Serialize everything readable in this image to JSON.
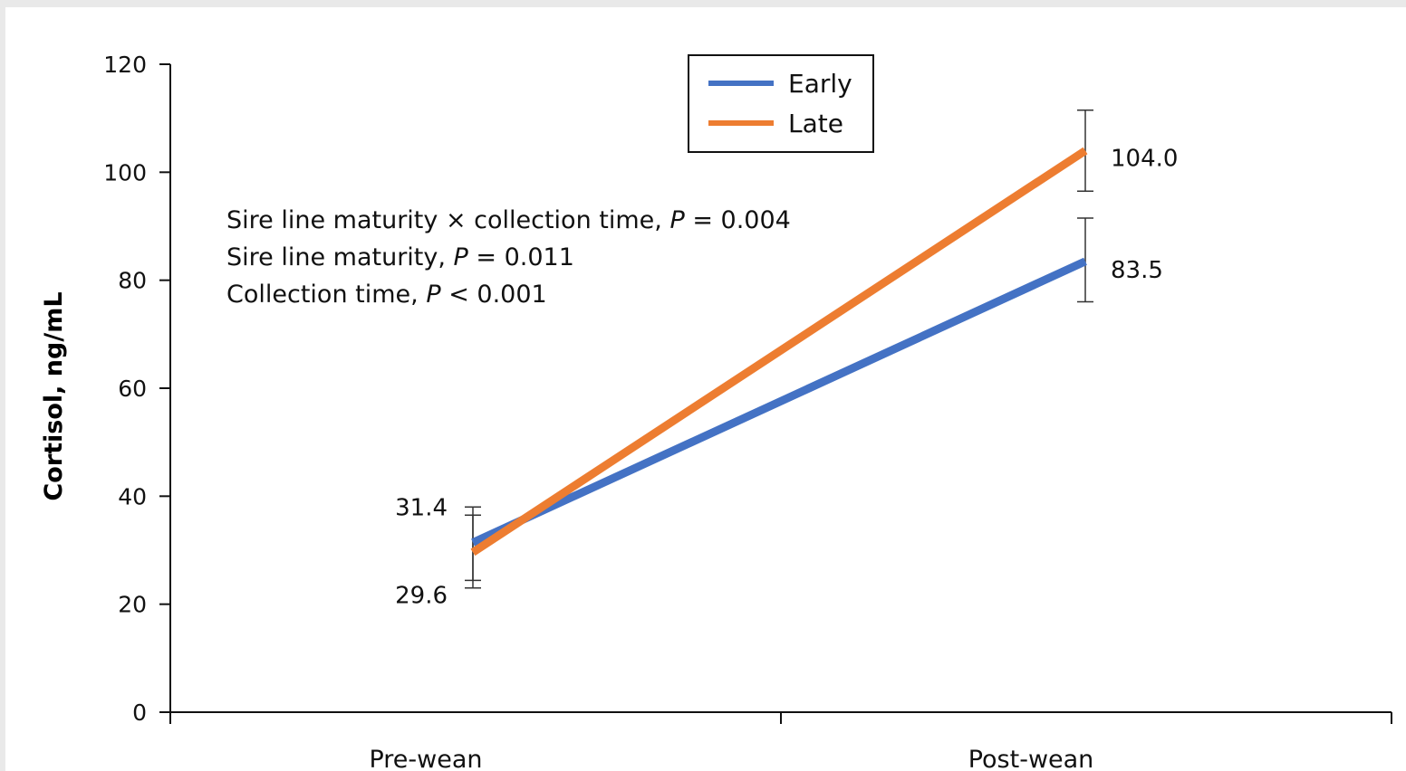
{
  "chart_data": {
    "type": "line",
    "categories": [
      "Pre-wean",
      "Post-wean"
    ],
    "ylabel": "Cortisol, ng/mL",
    "ylim": [
      0,
      120
    ],
    "yticks": [
      0,
      20,
      40,
      60,
      80,
      100,
      120
    ],
    "grid": false,
    "legend_position": "top-center",
    "series": [
      {
        "name": "Early",
        "color": "#4472c4",
        "values": [
          31.4,
          83.5
        ],
        "error_low": [
          24.4,
          76.0
        ],
        "error_high": [
          38.0,
          91.5
        ],
        "data_labels": [
          "31.4",
          "83.5"
        ]
      },
      {
        "name": "Late",
        "color": "#ed7d31",
        "values": [
          29.6,
          104.0
        ],
        "error_low": [
          23.0,
          96.5
        ],
        "error_high": [
          36.5,
          111.5
        ],
        "data_labels": [
          "29.6",
          "104.0"
        ]
      }
    ],
    "annotations": [
      {
        "text": "Sire line maturity × collection time, ",
        "p": "P",
        "rest": " = 0.004"
      },
      {
        "text": "Sire line maturity, ",
        "p": "P",
        "rest": " = 0.011"
      },
      {
        "text": "Collection time, ",
        "p": "P",
        "rest": " < 0.001"
      }
    ]
  }
}
